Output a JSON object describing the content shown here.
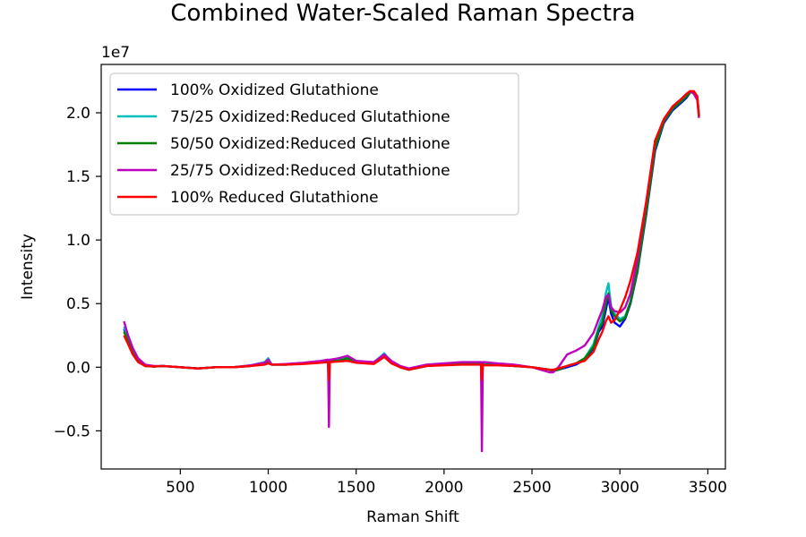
{
  "chart_data": {
    "type": "line",
    "title": "Combined Water-Scaled Raman Spectra",
    "xlabel": "Raman Shift",
    "ylabel": "Intensity",
    "y_scale_label": "1e7",
    "xlim": [
      50,
      3600
    ],
    "ylim": [
      -0.8,
      2.38
    ],
    "x_ticks": [
      500,
      1000,
      1500,
      2000,
      2500,
      3000,
      3500
    ],
    "x_tick_labels": [
      "500",
      "1000",
      "1500",
      "2000",
      "2500",
      "3000",
      "3500"
    ],
    "y_ticks": [
      -0.5,
      0.0,
      0.5,
      1.0,
      1.5,
      2.0
    ],
    "y_tick_labels": [
      "−0.5",
      "0.0",
      "0.5",
      "1.0",
      "1.5",
      "2.0"
    ],
    "grid": false,
    "legend_position": "top-left",
    "series": [
      {
        "name": "100% Oxidized Glutathione",
        "color": "#0000ff",
        "x": [
          180,
          200,
          230,
          260,
          300,
          350,
          400,
          500,
          600,
          700,
          800,
          900,
          980,
          1000,
          1020,
          1100,
          1200,
          1300,
          1340,
          1345,
          1350,
          1355,
          1400,
          1450,
          1500,
          1600,
          1660,
          1700,
          1750,
          1800,
          1900,
          2000,
          2100,
          2200,
          2210,
          2215,
          2220,
          2230,
          2300,
          2400,
          2500,
          2550,
          2600,
          2620,
          2650,
          2700,
          2750,
          2800,
          2850,
          2880,
          2900,
          2920,
          2935,
          2950,
          2970,
          3000,
          3030,
          3060,
          3100,
          3150,
          3200,
          3250,
          3300,
          3350,
          3380,
          3400,
          3420,
          3440,
          3450
        ],
        "y": [
          0.3,
          0.22,
          0.12,
          0.05,
          0.01,
          0.005,
          0.01,
          0.0,
          -0.01,
          0.0,
          0.0,
          0.01,
          0.03,
          0.06,
          0.02,
          0.02,
          0.03,
          0.04,
          0.05,
          -0.1,
          0.05,
          0.05,
          0.05,
          0.07,
          0.04,
          0.03,
          0.1,
          0.04,
          0.0,
          -0.02,
          0.01,
          0.02,
          0.03,
          0.03,
          0.03,
          -0.1,
          0.03,
          0.02,
          0.02,
          0.01,
          0.0,
          -0.01,
          -0.02,
          -0.03,
          -0.02,
          0.0,
          0.02,
          0.06,
          0.15,
          0.28,
          0.32,
          0.45,
          0.55,
          0.42,
          0.35,
          0.32,
          0.38,
          0.5,
          0.75,
          1.2,
          1.7,
          1.92,
          2.02,
          2.08,
          2.12,
          2.16,
          2.16,
          2.12,
          1.98
        ]
      },
      {
        "name": "75/25 Oxidized:Reduced Glutathione",
        "color": "#00bfbf",
        "x": [
          180,
          200,
          230,
          260,
          300,
          350,
          400,
          500,
          600,
          700,
          800,
          900,
          980,
          1000,
          1020,
          1100,
          1200,
          1300,
          1340,
          1345,
          1350,
          1355,
          1400,
          1450,
          1500,
          1600,
          1660,
          1700,
          1750,
          1800,
          1900,
          2000,
          2100,
          2200,
          2210,
          2215,
          2220,
          2230,
          2300,
          2400,
          2500,
          2550,
          2600,
          2620,
          2650,
          2700,
          2750,
          2800,
          2850,
          2880,
          2900,
          2920,
          2935,
          2950,
          2970,
          3000,
          3030,
          3060,
          3100,
          3150,
          3200,
          3250,
          3300,
          3350,
          3380,
          3400,
          3420,
          3440,
          3450
        ],
        "y": [
          0.32,
          0.23,
          0.13,
          0.06,
          0.015,
          0.005,
          0.01,
          0.0,
          -0.01,
          0.0,
          0.0,
          0.015,
          0.04,
          0.07,
          0.02,
          0.02,
          0.03,
          0.04,
          0.05,
          -0.3,
          0.05,
          0.05,
          0.06,
          0.08,
          0.045,
          0.035,
          0.11,
          0.04,
          0.0,
          -0.02,
          0.01,
          0.02,
          0.03,
          0.03,
          0.03,
          -0.3,
          0.03,
          0.02,
          0.02,
          0.01,
          0.0,
          -0.01,
          -0.02,
          -0.03,
          -0.02,
          0.01,
          0.03,
          0.07,
          0.18,
          0.32,
          0.4,
          0.58,
          0.66,
          0.48,
          0.42,
          0.38,
          0.4,
          0.52,
          0.78,
          1.25,
          1.74,
          1.94,
          2.04,
          2.1,
          2.14,
          2.17,
          2.16,
          2.12,
          1.99
        ]
      },
      {
        "name": "50/50 Oxidized:Reduced Glutathione",
        "color": "#008000",
        "x": [
          180,
          200,
          230,
          260,
          300,
          350,
          400,
          500,
          600,
          700,
          800,
          900,
          980,
          1000,
          1020,
          1100,
          1200,
          1300,
          1340,
          1345,
          1350,
          1355,
          1400,
          1450,
          1500,
          1600,
          1660,
          1700,
          1750,
          1800,
          1900,
          2000,
          2100,
          2200,
          2210,
          2215,
          2220,
          2230,
          2300,
          2400,
          2500,
          2550,
          2600,
          2620,
          2650,
          2700,
          2750,
          2800,
          2850,
          2880,
          2900,
          2920,
          2935,
          2950,
          2970,
          3000,
          3030,
          3060,
          3100,
          3150,
          3200,
          3250,
          3300,
          3350,
          3380,
          3400,
          3420,
          3440,
          3450
        ],
        "y": [
          0.28,
          0.21,
          0.11,
          0.05,
          0.01,
          0.005,
          0.01,
          0.0,
          -0.01,
          0.0,
          0.0,
          0.01,
          0.03,
          0.05,
          0.02,
          0.02,
          0.03,
          0.04,
          0.05,
          -0.2,
          0.05,
          0.05,
          0.05,
          0.07,
          0.04,
          0.03,
          0.09,
          0.04,
          0.0,
          -0.02,
          0.01,
          0.02,
          0.03,
          0.03,
          0.03,
          -0.2,
          0.03,
          0.02,
          0.02,
          0.01,
          0.0,
          -0.01,
          -0.02,
          -0.03,
          -0.02,
          0.01,
          0.03,
          0.07,
          0.16,
          0.3,
          0.35,
          0.5,
          0.58,
          0.45,
          0.4,
          0.36,
          0.39,
          0.51,
          0.76,
          1.22,
          1.72,
          1.93,
          2.03,
          2.09,
          2.13,
          2.16,
          2.16,
          2.12,
          1.98
        ]
      },
      {
        "name": "25/75 Oxidized:Reduced Glutathione",
        "color": "#bf00bf",
        "x": [
          180,
          200,
          230,
          260,
          300,
          350,
          400,
          500,
          600,
          700,
          800,
          900,
          980,
          1000,
          1020,
          1100,
          1200,
          1300,
          1340,
          1345,
          1350,
          1355,
          1400,
          1450,
          1500,
          1600,
          1660,
          1700,
          1750,
          1800,
          1900,
          2000,
          2100,
          2200,
          2210,
          2215,
          2220,
          2230,
          2300,
          2400,
          2500,
          2550,
          2600,
          2620,
          2650,
          2700,
          2750,
          2800,
          2850,
          2880,
          2900,
          2920,
          2935,
          2950,
          2970,
          3000,
          3030,
          3060,
          3100,
          3150,
          3200,
          3250,
          3300,
          3350,
          3380,
          3400,
          3420,
          3440,
          3450
        ],
        "y": [
          0.36,
          0.26,
          0.15,
          0.07,
          0.02,
          0.01,
          0.01,
          0.0,
          -0.01,
          0.0,
          0.0,
          0.015,
          0.035,
          0.06,
          0.02,
          0.025,
          0.035,
          0.05,
          0.06,
          -0.47,
          0.06,
          0.06,
          0.07,
          0.09,
          0.05,
          0.04,
          0.1,
          0.05,
          0.01,
          -0.01,
          0.02,
          0.03,
          0.04,
          0.04,
          0.04,
          -0.66,
          0.04,
          0.04,
          0.03,
          0.02,
          0.0,
          -0.02,
          -0.04,
          -0.04,
          0.0,
          0.1,
          0.13,
          0.17,
          0.27,
          0.38,
          0.45,
          0.55,
          0.57,
          0.47,
          0.44,
          0.43,
          0.47,
          0.58,
          0.85,
          1.3,
          1.78,
          1.95,
          2.05,
          2.11,
          2.15,
          2.17,
          2.15,
          2.1,
          1.96
        ]
      },
      {
        "name": "100% Reduced Glutathione",
        "color": "#ff0000",
        "x": [
          180,
          200,
          230,
          260,
          300,
          350,
          400,
          500,
          600,
          700,
          800,
          900,
          980,
          1000,
          1020,
          1100,
          1200,
          1300,
          1340,
          1345,
          1350,
          1355,
          1400,
          1450,
          1500,
          1600,
          1660,
          1700,
          1750,
          1800,
          1900,
          2000,
          2100,
          2200,
          2210,
          2215,
          2220,
          2230,
          2300,
          2400,
          2500,
          2550,
          2600,
          2620,
          2650,
          2700,
          2750,
          2800,
          2850,
          2880,
          2900,
          2920,
          2935,
          2950,
          2970,
          3000,
          3030,
          3060,
          3100,
          3150,
          3200,
          3250,
          3300,
          3350,
          3380,
          3400,
          3420,
          3440,
          3450
        ],
        "y": [
          0.25,
          0.19,
          0.1,
          0.04,
          0.01,
          0.005,
          0.01,
          0.0,
          -0.01,
          0.0,
          0.0,
          0.01,
          0.02,
          0.03,
          0.02,
          0.02,
          0.025,
          0.035,
          0.04,
          -0.1,
          0.04,
          0.04,
          0.045,
          0.05,
          0.035,
          0.025,
          0.08,
          0.03,
          0.0,
          -0.02,
          0.01,
          0.015,
          0.02,
          0.02,
          0.02,
          -0.1,
          0.02,
          0.015,
          0.015,
          0.01,
          0.0,
          -0.01,
          -0.02,
          -0.02,
          -0.01,
          0.01,
          0.03,
          0.05,
          0.12,
          0.22,
          0.28,
          0.36,
          0.4,
          0.35,
          0.37,
          0.45,
          0.55,
          0.68,
          0.9,
          1.3,
          1.78,
          1.95,
          2.05,
          2.11,
          2.15,
          2.17,
          2.17,
          2.13,
          1.97
        ]
      }
    ]
  }
}
